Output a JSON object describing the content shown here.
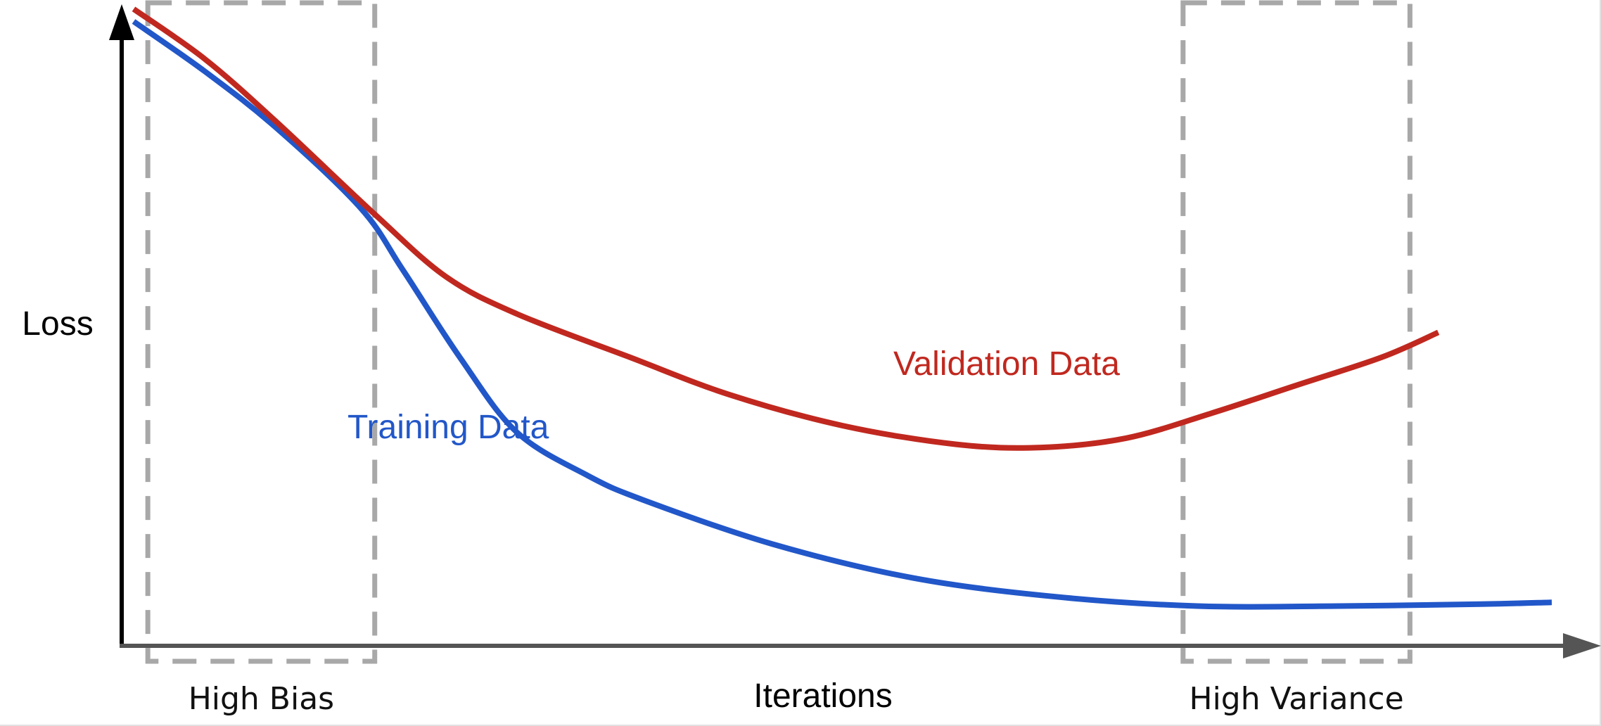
{
  "chart_data": {
    "type": "line",
    "xlabel": "Iterations",
    "ylabel": "Loss",
    "xlim": [
      0,
      100
    ],
    "ylim": [
      0,
      100
    ],
    "grid": false,
    "series": [
      {
        "name": "Training Data",
        "color": "#2257c9",
        "x": [
          0,
          5,
          10,
          16,
          19,
          23,
          27,
          32,
          36,
          45,
          55,
          65,
          75,
          85,
          95,
          100
        ],
        "y": [
          97,
          89,
          80,
          67,
          57,
          43,
          31,
          24,
          20,
          13,
          7.5,
          4.5,
          3,
          3,
          3.3,
          3.6
        ]
      },
      {
        "name": "Validation Data",
        "color": "#c0281f",
        "x": [
          0,
          5,
          10,
          17,
          22,
          27,
          35,
          42,
          50,
          58,
          64,
          70,
          76,
          82,
          88,
          92
        ],
        "y": [
          99,
          91,
          81,
          66,
          56,
          50,
          43,
          37,
          32,
          29,
          28.5,
          30,
          34,
          38.5,
          43,
          47
        ]
      }
    ],
    "regions": [
      {
        "label": "High Bias",
        "x_range": [
          1,
          17
        ],
        "stroke": "#a8a8a8"
      },
      {
        "label": "High Variance",
        "x_range": [
          74,
          90
        ],
        "stroke": "#a8a8a8"
      }
    ],
    "colors": {
      "axis_y": "#000000",
      "axis_x": "#555555"
    }
  }
}
